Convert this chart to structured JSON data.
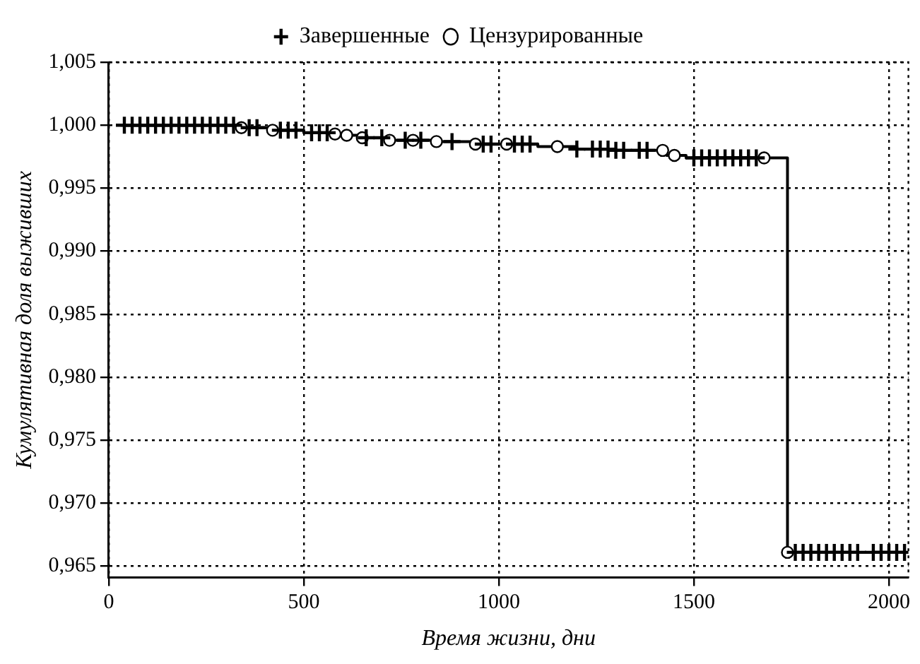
{
  "chart_data": {
    "type": "step",
    "xlabel": "Время жизни, дни",
    "ylabel": "Кумулятивная доля выживших",
    "xlim": [
      0,
      2050
    ],
    "xticks": [
      0,
      500,
      1000,
      1500,
      2000
    ],
    "ylim": [
      0.9641,
      1.005
    ],
    "yticks": [
      {
        "value": 0.965,
        "label": "0,965"
      },
      {
        "value": 0.97,
        "label": "0,970"
      },
      {
        "value": 0.975,
        "label": "0,975"
      },
      {
        "value": 0.98,
        "label": "0,980"
      },
      {
        "value": 0.985,
        "label": "0,985"
      },
      {
        "value": 0.99,
        "label": "0,990"
      },
      {
        "value": 0.995,
        "label": "0,995"
      },
      {
        "value": 1.0,
        "label": "1,000"
      },
      {
        "value": 1.005,
        "label": "1,005"
      }
    ],
    "grid": true,
    "legend": "top",
    "series": [
      {
        "color": "#000000",
        "marker": "none",
        "x": [
          30,
          330,
          420,
          500,
          580,
          640,
          720,
          840,
          940,
          1100,
          1200,
          1300,
          1430,
          1480,
          1740,
          2040
        ],
        "values": [
          1.0,
          0.9998,
          0.9996,
          0.9994,
          0.9992,
          0.999,
          0.9988,
          0.9987,
          0.9985,
          0.9983,
          0.9981,
          0.998,
          0.9976,
          0.9974,
          0.9661,
          0.9661
        ]
      },
      {
        "type": "scatter",
        "name": "Завершенные",
        "color": "#000000",
        "marker": "cross",
        "x": [
          40,
          60,
          80,
          100,
          120,
          140,
          160,
          180,
          200,
          220,
          240,
          260,
          280,
          300,
          320,
          360,
          380,
          440,
          460,
          480,
          520,
          540,
          560,
          660,
          700,
          760,
          800,
          880,
          960,
          980,
          1040,
          1060,
          1080,
          1200,
          1240,
          1260,
          1280,
          1300,
          1320,
          1360,
          1380,
          1500,
          1520,
          1540,
          1560,
          1580,
          1600,
          1620,
          1640,
          1660,
          1760,
          1780,
          1800,
          1820,
          1840,
          1860,
          1880,
          1900,
          1920,
          1960,
          1980,
          2000,
          2020,
          2040
        ],
        "values": [
          1.0,
          1.0,
          1.0,
          1.0,
          1.0,
          1.0,
          1.0,
          1.0,
          1.0,
          1.0,
          1.0,
          1.0,
          1.0,
          1.0,
          1.0,
          0.9998,
          0.9998,
          0.9996,
          0.9996,
          0.9996,
          0.9994,
          0.9994,
          0.9994,
          0.999,
          0.999,
          0.9988,
          0.9988,
          0.9987,
          0.9985,
          0.9985,
          0.9985,
          0.9985,
          0.9985,
          0.9981,
          0.9981,
          0.9981,
          0.9981,
          0.998,
          0.998,
          0.998,
          0.998,
          0.9974,
          0.9974,
          0.9974,
          0.9974,
          0.9974,
          0.9974,
          0.9974,
          0.9974,
          0.9974,
          0.9661,
          0.9661,
          0.9661,
          0.9661,
          0.9661,
          0.9661,
          0.9661,
          0.9661,
          0.9661,
          0.9661,
          0.9661,
          0.9661,
          0.9661,
          0.9661
        ]
      },
      {
        "type": "scatter",
        "name": "Цензурированные",
        "color": "#000000",
        "marker": "circle",
        "x": [
          340,
          420,
          580,
          610,
          650,
          720,
          780,
          840,
          940,
          1020,
          1150,
          1420,
          1450,
          1680,
          1740
        ],
        "values": [
          0.9998,
          0.9996,
          0.9993,
          0.9992,
          0.999,
          0.9988,
          0.9988,
          0.9987,
          0.9985,
          0.9985,
          0.9983,
          0.998,
          0.9976,
          0.9974,
          0.9661
        ]
      }
    ]
  }
}
